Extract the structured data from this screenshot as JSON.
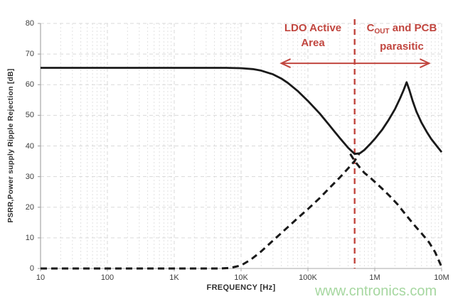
{
  "watermark": "www.cntronics.com",
  "chart_data": {
    "type": "line",
    "title": "",
    "xlabel": "FREQUENCY [Hz]",
    "ylabel": "PSRR,Power supply Ripple Rejection [dB]",
    "x_scale": "log",
    "xlim": [
      10,
      10000000
    ],
    "ylim": [
      0,
      80
    ],
    "grid": {
      "major": "dashed",
      "minor_vertical": "dotted-log-decades"
    },
    "x_ticks": [
      {
        "hz": 10,
        "label": "10"
      },
      {
        "hz": 100,
        "label": "100"
      },
      {
        "hz": 1000,
        "label": "1K"
      },
      {
        "hz": 10000,
        "label": "10K"
      },
      {
        "hz": 100000,
        "label": "100K"
      },
      {
        "hz": 1000000,
        "label": "1M"
      },
      {
        "hz": 10000000,
        "label": "10M"
      }
    ],
    "y_ticks": [
      {
        "db": 0,
        "label": "0"
      },
      {
        "db": 10,
        "label": "10"
      },
      {
        "db": 20,
        "label": "20"
      },
      {
        "db": 30,
        "label": "30"
      },
      {
        "db": 40,
        "label": "40"
      },
      {
        "db": 50,
        "label": "50"
      },
      {
        "db": 60,
        "label": "60"
      },
      {
        "db": 70,
        "label": "70"
      },
      {
        "db": 80,
        "label": "80"
      }
    ],
    "colors": {
      "curve": "#1a1a1a",
      "grid_major": "#d9d9d9",
      "grid_minor": "#e2e2e2",
      "axis": "#a8a8a8",
      "annotation_red": "#c1463f",
      "watermark_green": "#a6d7a0",
      "tick_text": "#3d3d3d"
    },
    "series": [
      {
        "name": "psrr-curve",
        "style": "solid",
        "color": "#1a1a1a",
        "points": [
          [
            10,
            65.5
          ],
          [
            100,
            65.5
          ],
          [
            1000,
            65.5
          ],
          [
            3000,
            65.5
          ],
          [
            6000,
            65.5
          ],
          [
            10000,
            65.4
          ],
          [
            15000,
            65.1
          ],
          [
            20000,
            64.6
          ],
          [
            30000,
            63.4
          ],
          [
            40000,
            62.0
          ],
          [
            50000,
            60.6
          ],
          [
            70000,
            58.0
          ],
          [
            100000,
            54.7
          ],
          [
            150000,
            50.6
          ],
          [
            200000,
            47.3
          ],
          [
            250000,
            44.7
          ],
          [
            300000,
            42.6
          ],
          [
            400000,
            39.4
          ],
          [
            500000,
            37.4
          ],
          [
            600000,
            37.6
          ],
          [
            700000,
            38.7
          ],
          [
            850000,
            40.6
          ],
          [
            1000000,
            42.3
          ],
          [
            1300000,
            45.4
          ],
          [
            1600000,
            48.4
          ],
          [
            2000000,
            52.0
          ],
          [
            2400000,
            55.6
          ],
          [
            2700000,
            58.2
          ],
          [
            3000000,
            60.8
          ],
          [
            3300000,
            58.2
          ],
          [
            3700000,
            54.6
          ],
          [
            4200000,
            51.2
          ],
          [
            5000000,
            47.6
          ],
          [
            6000000,
            44.6
          ],
          [
            7000000,
            42.3
          ],
          [
            8500000,
            39.9
          ],
          [
            10000000,
            38.0
          ]
        ]
      },
      {
        "name": "parasitic-dashed-rising",
        "style": "dashed",
        "color": "#1a1a1a",
        "points": [
          [
            10,
            0
          ],
          [
            1000,
            0
          ],
          [
            3000,
            0
          ],
          [
            5000,
            0
          ],
          [
            7000,
            0.2
          ],
          [
            10000,
            1.0
          ],
          [
            14000,
            2.9
          ],
          [
            20000,
            5.6
          ],
          [
            30000,
            9.1
          ],
          [
            50000,
            13.5
          ],
          [
            70000,
            16.4
          ],
          [
            100000,
            19.4
          ],
          [
            150000,
            23.0
          ],
          [
            200000,
            25.8
          ],
          [
            300000,
            29.7
          ],
          [
            400000,
            32.7
          ],
          [
            500000,
            35.1
          ],
          [
            580000,
            37.4
          ]
        ]
      },
      {
        "name": "parasitic-dashed-falling",
        "style": "dashed",
        "color": "#1a1a1a",
        "points": [
          [
            430000,
            37.4
          ],
          [
            500000,
            35.1
          ],
          [
            600000,
            32.9
          ],
          [
            700000,
            31.2
          ],
          [
            850000,
            29.7
          ],
          [
            1000000,
            28.3
          ],
          [
            1300000,
            26.0
          ],
          [
            1700000,
            23.5
          ],
          [
            2200000,
            20.9
          ],
          [
            3000000,
            17.2
          ],
          [
            4000000,
            13.9
          ],
          [
            5000000,
            11.5
          ],
          [
            6500000,
            8.5
          ],
          [
            8000000,
            5.3
          ],
          [
            10000000,
            0.5
          ]
        ]
      }
    ],
    "annotations": {
      "divider": {
        "hz": 500000,
        "style": "dashed-vertical",
        "color": "#c1463f"
      },
      "region_left": {
        "line1": "LDO Active",
        "line2": "Area"
      },
      "region_right": {
        "symbol_main": "C",
        "symbol_sub": "OUT",
        "after_symbol": " and PCB",
        "line2": "parasitic"
      },
      "span_arrow": {
        "from_hz": 40000,
        "to_hz": 6500000,
        "db": 67
      }
    }
  }
}
